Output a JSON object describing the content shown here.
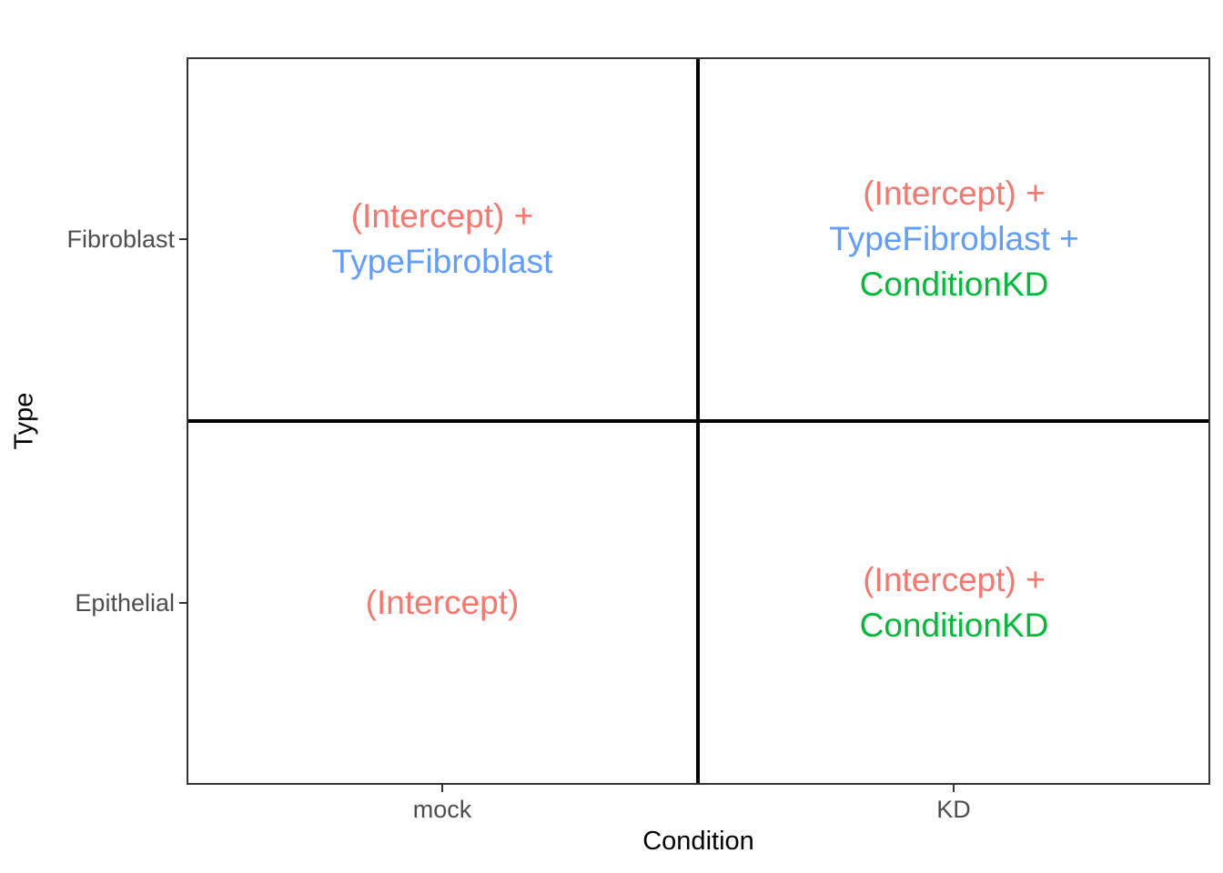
{
  "chart_data": {
    "type": "scatter",
    "subtype": "categorical-text-annotation-grid",
    "title": "",
    "xlabel": "Condition",
    "ylabel": "Type",
    "x_categories": [
      "mock",
      "KD"
    ],
    "y_categories": [
      "Epithelial",
      "Fibroblast"
    ],
    "grid": false,
    "legend": "none",
    "panel_border_color": "#333333",
    "divider_color": "#000000",
    "axis_text_color": "#4D4D4D",
    "axis_title_color": "#000000",
    "term_colors": {
      "intercept": "#F8766D",
      "type_fibroblast": "#619CFF",
      "condition_kd": "#00BA38"
    },
    "annotations": [
      {
        "x": "mock",
        "y": "Fibroblast",
        "lines": [
          {
            "text": "(Intercept) +",
            "color": "#F8766D"
          },
          {
            "text": "TypeFibroblast",
            "color": "#619CFF"
          }
        ]
      },
      {
        "x": "KD",
        "y": "Fibroblast",
        "lines": [
          {
            "text": "(Intercept) +",
            "color": "#F8766D"
          },
          {
            "text": "TypeFibroblast +",
            "color": "#619CFF"
          },
          {
            "text": "ConditionKD",
            "color": "#00BA38"
          }
        ]
      },
      {
        "x": "mock",
        "y": "Epithelial",
        "lines": [
          {
            "text": "(Intercept)",
            "color": "#F8766D"
          }
        ]
      },
      {
        "x": "KD",
        "y": "Epithelial",
        "lines": [
          {
            "text": "(Intercept) +",
            "color": "#F8766D"
          },
          {
            "text": "ConditionKD",
            "color": "#00BA38"
          }
        ]
      }
    ]
  }
}
